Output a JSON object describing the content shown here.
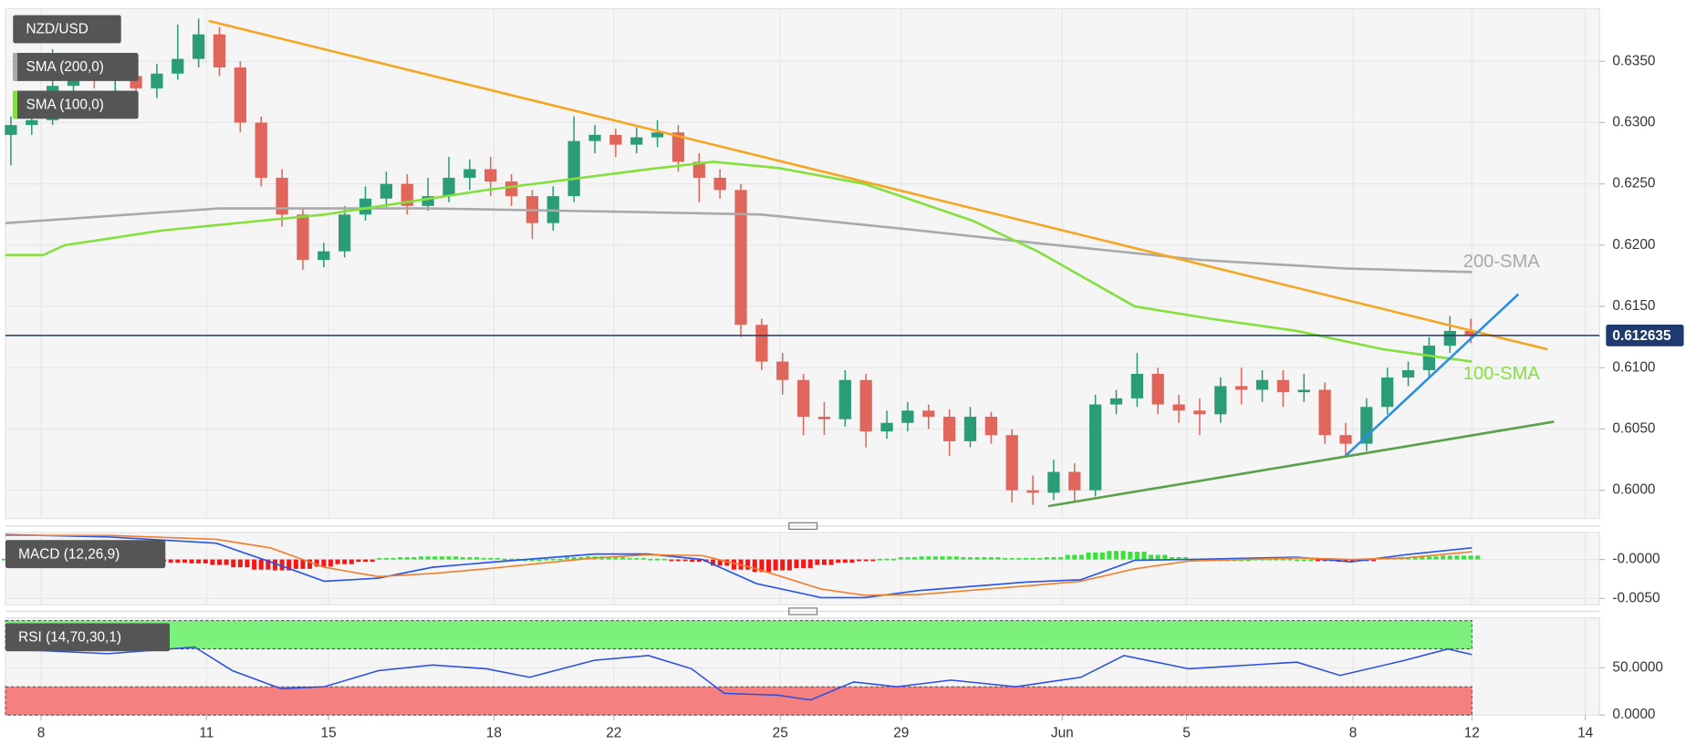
{
  "chart_data": [
    {
      "type": "candlestick",
      "title": "NZD/USD",
      "x": [
        0,
        1,
        2,
        3,
        4,
        5,
        6,
        7,
        8,
        9,
        10,
        11,
        12,
        13,
        14,
        15,
        16,
        17,
        18,
        19,
        20,
        21,
        22,
        23,
        24,
        25,
        26,
        27,
        28,
        29,
        30,
        31,
        32,
        33,
        34,
        35,
        36,
        37,
        38,
        39,
        40,
        41,
        42,
        43,
        44,
        45,
        46,
        47,
        48,
        49,
        50,
        51,
        52,
        53,
        54,
        55,
        56,
        57,
        58,
        59,
        60,
        61,
        62,
        63,
        64,
        65,
        66,
        67,
        68,
        69,
        70
      ],
      "open": [
        0.629,
        0.6298,
        0.6302,
        0.633,
        0.6342,
        0.6335,
        0.6338,
        0.6328,
        0.634,
        0.6352,
        0.6372,
        0.6345,
        0.63,
        0.6255,
        0.6225,
        0.6188,
        0.6195,
        0.6225,
        0.6238,
        0.625,
        0.6232,
        0.624,
        0.6255,
        0.6262,
        0.6252,
        0.624,
        0.6218,
        0.624,
        0.6285,
        0.629,
        0.6282,
        0.6288,
        0.6292,
        0.6268,
        0.6255,
        0.6245,
        0.6135,
        0.6105,
        0.609,
        0.606,
        0.6058,
        0.609,
        0.6048,
        0.6055,
        0.6065,
        0.606,
        0.604,
        0.606,
        0.6045,
        0.6,
        0.5998,
        0.6015,
        0.6,
        0.607,
        0.6075,
        0.6095,
        0.607,
        0.6065,
        0.6062,
        0.6085,
        0.6082,
        0.609,
        0.608,
        0.6082,
        0.6045,
        0.6038,
        0.6068,
        0.6092,
        0.6098,
        0.6118,
        0.613
      ],
      "high": [
        0.6305,
        0.6312,
        0.636,
        0.635,
        0.6348,
        0.6345,
        0.6342,
        0.6348,
        0.638,
        0.6385,
        0.6378,
        0.635,
        0.6305,
        0.6262,
        0.623,
        0.6202,
        0.6232,
        0.6248,
        0.626,
        0.6258,
        0.6255,
        0.6272,
        0.627,
        0.6272,
        0.6258,
        0.6245,
        0.6248,
        0.6305,
        0.6298,
        0.6295,
        0.6296,
        0.6302,
        0.6298,
        0.6275,
        0.6262,
        0.625,
        0.614,
        0.6112,
        0.6095,
        0.6072,
        0.6098,
        0.6095,
        0.6065,
        0.6072,
        0.607,
        0.6066,
        0.6068,
        0.6064,
        0.605,
        0.6012,
        0.6025,
        0.6022,
        0.6078,
        0.6082,
        0.6112,
        0.61,
        0.6078,
        0.6075,
        0.6092,
        0.61,
        0.6098,
        0.6098,
        0.6095,
        0.6088,
        0.6055,
        0.6075,
        0.61,
        0.6105,
        0.6125,
        0.6142,
        0.614
      ],
      "low": [
        0.6265,
        0.629,
        0.6298,
        0.6322,
        0.6328,
        0.6325,
        0.6318,
        0.632,
        0.6335,
        0.6345,
        0.6338,
        0.6292,
        0.6248,
        0.6215,
        0.618,
        0.6182,
        0.619,
        0.622,
        0.623,
        0.6225,
        0.6228,
        0.6235,
        0.6245,
        0.624,
        0.6232,
        0.6205,
        0.6212,
        0.6235,
        0.6275,
        0.6272,
        0.6275,
        0.628,
        0.626,
        0.6235,
        0.6238,
        0.6125,
        0.6098,
        0.6078,
        0.6045,
        0.6045,
        0.6052,
        0.6035,
        0.6042,
        0.6048,
        0.605,
        0.6028,
        0.6035,
        0.6038,
        0.599,
        0.5988,
        0.5992,
        0.599,
        0.5995,
        0.6062,
        0.6068,
        0.6062,
        0.6055,
        0.6045,
        0.6055,
        0.607,
        0.6072,
        0.6068,
        0.6072,
        0.6038,
        0.6028,
        0.6032,
        0.6062,
        0.6085,
        0.6092,
        0.6112,
        0.612
      ],
      "close": [
        0.6298,
        0.6302,
        0.633,
        0.6342,
        0.6335,
        0.6338,
        0.6328,
        0.634,
        0.6352,
        0.6372,
        0.6345,
        0.63,
        0.6255,
        0.6225,
        0.6188,
        0.6195,
        0.6225,
        0.6238,
        0.625,
        0.6232,
        0.624,
        0.6255,
        0.6262,
        0.6252,
        0.624,
        0.6218,
        0.624,
        0.6285,
        0.629,
        0.6282,
        0.6288,
        0.6292,
        0.6268,
        0.6255,
        0.6245,
        0.6135,
        0.6105,
        0.609,
        0.606,
        0.6058,
        0.609,
        0.6048,
        0.6055,
        0.6065,
        0.606,
        0.604,
        0.606,
        0.6045,
        0.6,
        0.5998,
        0.6015,
        0.6,
        0.607,
        0.6075,
        0.6095,
        0.607,
        0.6065,
        0.6062,
        0.6085,
        0.6082,
        0.609,
        0.608,
        0.6082,
        0.6045,
        0.6038,
        0.6068,
        0.6092,
        0.6098,
        0.6118,
        0.613,
        0.6126
      ],
      "up_color": "#2a9d78",
      "down_color": "#e0665c",
      "xlim": [
        -0.26,
        76.17
      ],
      "ylim": [
        0.5977,
        0.6393
      ],
      "yticks": [
        {
          "value": 0.6,
          "label": "0.6000"
        },
        {
          "value": 0.605,
          "label": "0.6050"
        },
        {
          "value": 0.61,
          "label": "0.6100"
        },
        {
          "value": 0.615,
          "label": "0.6150"
        },
        {
          "value": 0.62,
          "label": "0.6200"
        },
        {
          "value": 0.625,
          "label": "0.6250"
        },
        {
          "value": 0.63,
          "label": "0.6300"
        },
        {
          "value": 0.635,
          "label": "0.6350"
        }
      ],
      "grid": true,
      "last_price": 0.612635,
      "last_price_color": "#1f3a6e",
      "series": [
        {
          "name": "SMA (200,0)",
          "label": "200-SMA",
          "color": "#a9a9a9",
          "x": [
            -0.26,
            10,
            20,
            30,
            36,
            43,
            49,
            57,
            64,
            70.05
          ],
          "values": [
            0.6218,
            0.623,
            0.623,
            0.6227,
            0.6225,
            0.6213,
            0.6202,
            0.6188,
            0.6181,
            0.6178
          ]
        },
        {
          "name": "SMA (100,0)",
          "label": "100-SMA",
          "color": "#84e03c",
          "x": [
            -0.26,
            1.55,
            2.59,
            7.25,
            15.03,
            22.8,
            30.57,
            33.68,
            36.79,
            40.93,
            46.11,
            49.22,
            53.89,
            57.51,
            61.66,
            65.8,
            70.05
          ],
          "values": [
            0.6192,
            0.6192,
            0.62,
            0.6212,
            0.6225,
            0.6245,
            0.6262,
            0.6268,
            0.6263,
            0.625,
            0.622,
            0.6195,
            0.615,
            0.614,
            0.613,
            0.6115,
            0.6105
          ]
        }
      ],
      "trendlines": [
        {
          "color": "#f5a623",
          "x": [
            9.48,
            73.68
          ],
          "values": [
            0.6383,
            0.6115
          ]
        },
        {
          "color": "#2b8fe3",
          "x": [
            63.99,
            72.28
          ],
          "values": [
            0.6028,
            0.616
          ]
        },
        {
          "color": "#5aa04a",
          "x": [
            49.74,
            73.99
          ],
          "values": [
            0.5987,
            0.6056
          ]
        }
      ]
    },
    {
      "type": "macd",
      "title": "MACD (12,26,9)",
      "xlim": [
        -0.26,
        76.17
      ],
      "ylim": [
        -0.00583,
        0.00347
      ],
      "yticks": [
        {
          "value": -0.005,
          "label": "-0.0050"
        },
        {
          "value": 0,
          "label": "-0.0000"
        }
      ],
      "histogram": {
        "up_color": "#3ce03c",
        "down_color": "#f01818",
        "values": [
          0.0001,
          0.0001,
          0.0,
          -0.0001,
          -0.0001,
          -0.0002,
          -0.0002,
          -0.0003,
          -0.0004,
          -0.0005,
          -0.0007,
          -0.001,
          -0.0013,
          -0.0014,
          -0.0012,
          -0.0009,
          -0.0006,
          -0.0003,
          0.0002,
          0.0003,
          0.0004,
          0.0004,
          0.0003,
          0.0002,
          0.0001,
          0.0,
          0.0001,
          0.0003,
          0.0004,
          0.0003,
          0.0002,
          0.0001,
          -0.0001,
          -0.0003,
          -0.0008,
          -0.0013,
          -0.0016,
          -0.0014,
          -0.0011,
          -0.0007,
          -0.0004,
          -0.0002,
          0.0001,
          0.0003,
          0.0004,
          0.0004,
          0.0003,
          0.0003,
          0.0002,
          0.0002,
          0.0003,
          0.0006,
          0.0009,
          0.0011,
          0.001,
          0.0006,
          0.0003,
          0.0001,
          0.0,
          0.0,
          0.0001,
          0.0001,
          0.0,
          -0.0002,
          -0.0003,
          -0.0001,
          0.0002,
          0.0003,
          0.0004,
          0.0005,
          0.0005
        ]
      },
      "series": [
        {
          "color": "#2955e8",
          "x": [
            -0.26,
            4.66,
            9.84,
            12.44,
            15.03,
            17.62,
            20.21,
            22.8,
            27.98,
            30.57,
            33.16,
            35.75,
            38.86,
            40.93,
            43.52,
            48.7,
            51.3,
            53.89,
            56.48,
            61.66,
            64.25,
            66.84,
            70.05
          ],
          "values": [
            0.0032,
            0.0029,
            0.0021,
            -0.0003,
            -0.0028,
            -0.0024,
            -0.001,
            -0.0004,
            0.0007,
            0.0007,
            0.0,
            -0.0031,
            -0.0049,
            -0.0049,
            -0.004,
            -0.0029,
            -0.0026,
            -0.0001,
            0.0,
            0.0003,
            -0.0003,
            0.0006,
            0.0015
          ]
        },
        {
          "color": "#f08030",
          "x": [
            -0.26,
            4.66,
            9.84,
            12.44,
            15.03,
            17.62,
            20.21,
            22.8,
            27.98,
            30.57,
            33.16,
            35.75,
            38.86,
            40.93,
            43.52,
            48.7,
            51.3,
            53.89,
            56.48,
            61.66,
            64.25,
            66.84,
            70.05
          ],
          "values": [
            0.0031,
            0.0031,
            0.0026,
            0.0015,
            -0.001,
            -0.0022,
            -0.0018,
            -0.0012,
            0.0002,
            0.0006,
            0.0005,
            -0.0012,
            -0.0038,
            -0.0046,
            -0.0045,
            -0.0034,
            -0.0028,
            -0.0012,
            -0.0002,
            0.0002,
            0.0,
            0.0002,
            0.001
          ]
        }
      ]
    },
    {
      "type": "rsi",
      "title": "RSI (14,70,30,1)",
      "xlim": [
        -0.26,
        76.17
      ],
      "ylim": [
        0,
        103
      ],
      "yticks": [
        {
          "value": 0,
          "label": "0.0000"
        },
        {
          "value": 50,
          "label": "50.0000"
        }
      ],
      "bands": [
        {
          "from": 70,
          "to": 100,
          "color": "#7cf27c"
        },
        {
          "from": 0,
          "to": 30,
          "color": "#f58080"
        }
      ],
      "xticks": [
        {
          "value": 1.45,
          "label": "8"
        },
        {
          "value": 9.38,
          "label": "11"
        },
        {
          "value": 15.23,
          "label": "15"
        },
        {
          "value": 23.16,
          "label": "18"
        },
        {
          "value": 28.91,
          "label": "22"
        },
        {
          "value": 36.89,
          "label": "25"
        },
        {
          "value": 42.69,
          "label": "29"
        },
        {
          "value": 50.41,
          "label": "Jun"
        },
        {
          "value": 56.37,
          "label": "5"
        },
        {
          "value": 64.35,
          "label": "8"
        },
        {
          "value": 70.05,
          "label": "12"
        },
        {
          "value": 75.49,
          "label": "14"
        }
      ],
      "series": [
        {
          "color": "#2b4fe0",
          "x": [
            -0.26,
            4.66,
            8.81,
            10.62,
            12.95,
            15.03,
            17.62,
            20.21,
            22.8,
            24.87,
            27.98,
            30.57,
            32.64,
            34.2,
            36.79,
            38.34,
            40.41,
            42.49,
            45.08,
            48.19,
            51.3,
            53.37,
            56.48,
            61.66,
            63.73,
            66.84,
            68.91,
            70.05
          ],
          "values": [
            70,
            65,
            72,
            47,
            28,
            30,
            47,
            53,
            49,
            40,
            58,
            63,
            49,
            23,
            21,
            16,
            35,
            30,
            37,
            30,
            40,
            63,
            49,
            56,
            42,
            58,
            70,
            64
          ]
        }
      ]
    }
  ]
}
